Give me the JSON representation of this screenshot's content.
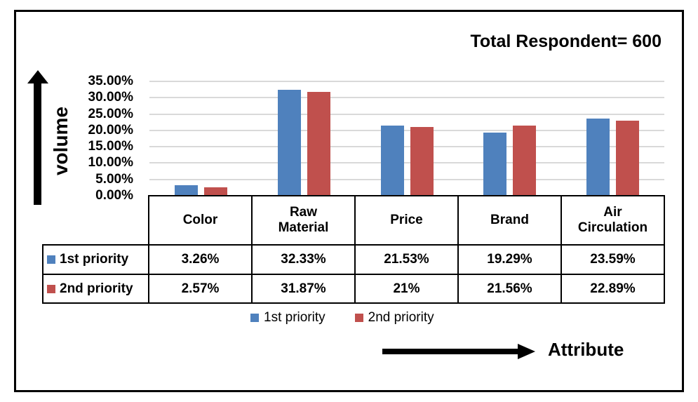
{
  "chart_data": {
    "type": "bar",
    "title": "Total Respondent= 600",
    "categories": [
      "Color",
      "Raw Material",
      "Price",
      "Brand",
      "Air Circulation"
    ],
    "series": [
      {
        "name": "1st priority",
        "color": "#4F81BD",
        "values": [
          3.26,
          32.33,
          21.53,
          19.29,
          23.59
        ]
      },
      {
        "name": "2nd priority",
        "color": "#C0504D",
        "values": [
          2.57,
          31.87,
          21.0,
          21.56,
          22.89
        ]
      }
    ],
    "ylabel": "volume",
    "xlabel": "Attribute",
    "ylim": [
      0,
      35
    ],
    "ytick_step": 5,
    "yticks": [
      "35.00%",
      "30.00%",
      "25.00%",
      "20.00%",
      "15.00%",
      "10.00%",
      "5.00%",
      "0.00%"
    ],
    "grid": true,
    "gridline_color": "#D9D9D9",
    "legend_position": "bottom"
  },
  "table": {
    "row_headers": [
      "1st priority",
      "2nd priority"
    ],
    "columns": [
      "Color",
      "Raw Material",
      "Price",
      "Brand",
      "Air Circulation"
    ],
    "rows": [
      [
        "3.26%",
        "32.33%",
        "21.53%",
        "19.29%",
        "23.59%"
      ],
      [
        "2.57%",
        "31.87%",
        "21%",
        "21.56%",
        "22.89%"
      ]
    ]
  },
  "legend": {
    "items": [
      {
        "label": "1st priority",
        "color": "#4F81BD"
      },
      {
        "label": "2nd priority",
        "color": "#C0504D"
      }
    ]
  }
}
